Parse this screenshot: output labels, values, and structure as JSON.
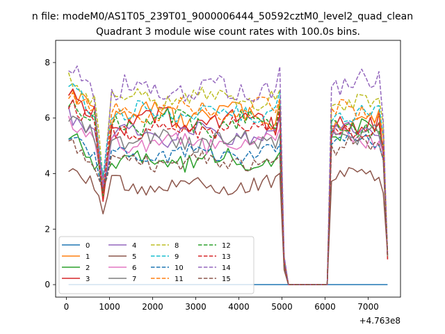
{
  "chart_data": {
    "type": "line",
    "suptitle": "n file: modeM0/AS1T05_239T01_9000006444_50592cztM0_level2_quad_clean",
    "title": "Quadrant 3 module wise count rates with 100.0s bins.",
    "xlabel": "",
    "ylabel": "",
    "x_offset_label": "+4.763e8",
    "xlim": [
      -250,
      7750
    ],
    "ylim": [
      -0.45,
      8.8
    ],
    "xticks": [
      0,
      1000,
      2000,
      3000,
      4000,
      5000,
      6000,
      7000
    ],
    "xtick_labels": [
      "0",
      "1000",
      "2000",
      "3000",
      "4000",
      "5000",
      "6000",
      "7000"
    ],
    "yticks": [
      0,
      2,
      4,
      6,
      8
    ],
    "ytick_labels": [
      "0",
      "2",
      "4",
      "6",
      "8"
    ],
    "grid": false,
    "legend_position": "lower-left",
    "legend_columns": 4,
    "x_start": 50,
    "x_step": 100,
    "n_points": 75,
    "gap": {
      "start": 5150,
      "end": 6050,
      "value": 0
    },
    "dip_at": 850,
    "series": [
      {
        "name": "0",
        "color": "#1f77b4",
        "dash": "solid",
        "values": "all zero",
        "base": 0,
        "amp": 0,
        "phase": 0,
        "dip": 0,
        "seg2": 0
      },
      {
        "name": "1",
        "color": "#ff7f0e",
        "dash": "solid",
        "base": 6.1,
        "amp": 0.35,
        "phase": 1.3,
        "dip": 3.3,
        "seg2": 5.9
      },
      {
        "name": "2",
        "color": "#2ca02c",
        "dash": "solid",
        "base": 4.5,
        "amp": 0.3,
        "phase": 2.1,
        "dip": 3.7,
        "seg2": 5.6
      },
      {
        "name": "3",
        "color": "#d62728",
        "dash": "solid",
        "base": 5.9,
        "amp": 0.35,
        "phase": 0.4,
        "dip": 3.0,
        "seg2": 5.8
      },
      {
        "name": "4",
        "color": "#9467bd",
        "dash": "solid",
        "base": 5.4,
        "amp": 0.3,
        "phase": 3.3,
        "dip": 3.5,
        "seg2": 5.5
      },
      {
        "name": "5",
        "color": "#8c564b",
        "dash": "solid",
        "base": 3.55,
        "amp": 0.25,
        "phase": 4.1,
        "dip": 2.55,
        "seg2": 3.9
      },
      {
        "name": "6",
        "color": "#e377c2",
        "dash": "solid",
        "base": 5.1,
        "amp": 0.3,
        "phase": 5.2,
        "dip": 3.6,
        "seg2": 5.3
      },
      {
        "name": "7",
        "color": "#7f7f7f",
        "dash": "solid",
        "base": 5.2,
        "amp": 0.3,
        "phase": 0.9,
        "dip": 3.9,
        "seg2": 5.4
      },
      {
        "name": "8",
        "color": "#bcbd22",
        "dash": "dashed",
        "base": 6.7,
        "amp": 0.3,
        "phase": 2.7,
        "dip": 3.8,
        "seg2": 6.5
      },
      {
        "name": "9",
        "color": "#17becf",
        "dash": "dashed",
        "base": 6.2,
        "amp": 0.3,
        "phase": 1.8,
        "dip": 3.9,
        "seg2": 6.1
      },
      {
        "name": "10",
        "color": "#1f77b4",
        "dash": "dashed",
        "base": 4.7,
        "amp": 0.25,
        "phase": 3.9,
        "dip": 3.4,
        "seg2": 5.2
      },
      {
        "name": "11",
        "color": "#ff7f0e",
        "dash": "dashed",
        "base": 6.3,
        "amp": 0.3,
        "phase": 4.6,
        "dip": 3.7,
        "seg2": 6.2
      },
      {
        "name": "12",
        "color": "#2ca02c",
        "dash": "dashed",
        "base": 5.8,
        "amp": 0.35,
        "phase": 5.8,
        "dip": 3.2,
        "seg2": 5.7
      },
      {
        "name": "13",
        "color": "#d62728",
        "dash": "dashed",
        "base": 5.6,
        "amp": 0.3,
        "phase": 0.2,
        "dip": 3.3,
        "seg2": 5.6
      },
      {
        "name": "14",
        "color": "#9467bd",
        "dash": "dashed",
        "base": 7.0,
        "amp": 0.4,
        "phase": 2.5,
        "dip": 3.6,
        "seg2": 7.2
      },
      {
        "name": "15",
        "color": "#8c564b",
        "dash": "dashed",
        "base": 4.4,
        "amp": 0.3,
        "phase": 3.1,
        "dip": 3.4,
        "seg2": 5.0
      }
    ]
  }
}
